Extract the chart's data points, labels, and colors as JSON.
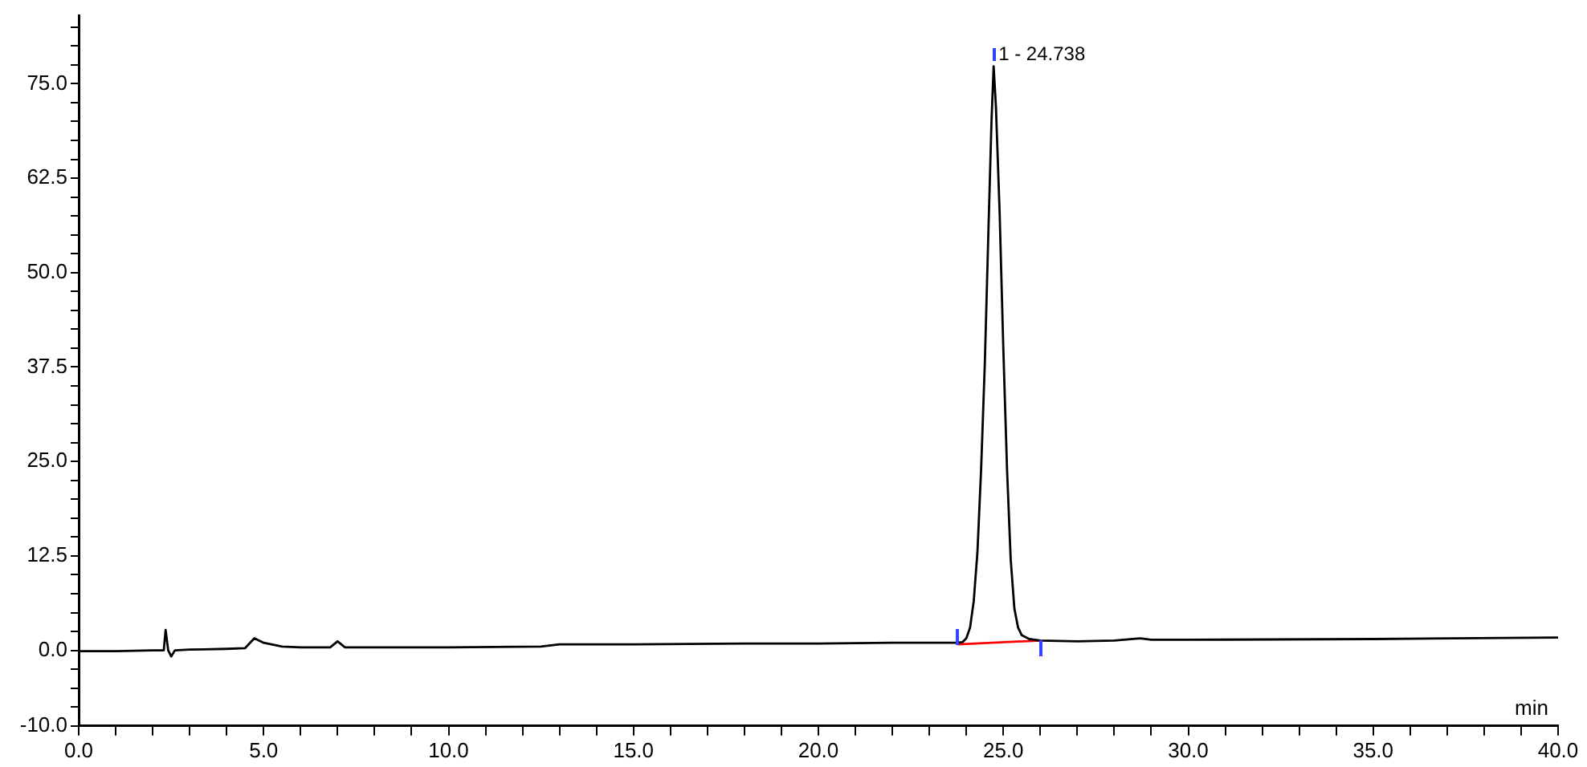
{
  "chart_data": {
    "type": "line",
    "xlabel": "min",
    "x": [
      0,
      1.0,
      2.0,
      2.3,
      2.35,
      2.42,
      2.5,
      2.6,
      3.0,
      4.0,
      4.5,
      4.75,
      5.0,
      5.5,
      6.0,
      6.8,
      7.0,
      7.2,
      8.0,
      10.0,
      12.5,
      13.0,
      15.0,
      18.0,
      20.0,
      22.0,
      23.7,
      23.9,
      24.0,
      24.1,
      24.2,
      24.3,
      24.4,
      24.5,
      24.6,
      24.68,
      24.738,
      24.8,
      24.9,
      25.0,
      25.1,
      25.2,
      25.3,
      25.4,
      25.5,
      25.7,
      26.0,
      27.0,
      28.0,
      28.7,
      29.0,
      30.0,
      35.0,
      40.0
    ],
    "series": [
      {
        "color": "#000000",
        "values": [
          -0.1,
          -0.1,
          0.0,
          0.0,
          2.7,
          0.0,
          -0.8,
          0.0,
          0.1,
          0.2,
          0.3,
          1.6,
          1.0,
          0.5,
          0.4,
          0.4,
          1.2,
          0.4,
          0.4,
          0.4,
          0.5,
          0.8,
          0.8,
          0.9,
          0.9,
          1.0,
          1.0,
          1.1,
          1.6,
          3.0,
          6.5,
          13.0,
          24.0,
          38.0,
          56.0,
          70.0,
          77.3,
          72.0,
          58.0,
          40.0,
          24.0,
          12.0,
          5.5,
          3.0,
          2.0,
          1.5,
          1.3,
          1.2,
          1.3,
          1.6,
          1.4,
          1.4,
          1.5,
          1.7
        ]
      },
      {
        "color": "#ff0000",
        "x": [
          23.77,
          26.0
        ],
        "values": [
          0.8,
          1.3
        ]
      }
    ],
    "annotations": [
      {
        "text": "1 - 24.738",
        "x": 24.738,
        "y": 77.3
      }
    ],
    "xlim": [
      0,
      40
    ],
    "xticks": [
      {
        "value": 0,
        "label": "0.0"
      },
      {
        "value": 1,
        "label": null
      },
      {
        "value": 2,
        "label": null
      },
      {
        "value": 3,
        "label": null
      },
      {
        "value": 4,
        "label": null
      },
      {
        "value": 5,
        "label": "5.0"
      },
      {
        "value": 6,
        "label": null
      },
      {
        "value": 7,
        "label": null
      },
      {
        "value": 8,
        "label": null
      },
      {
        "value": 9,
        "label": null
      },
      {
        "value": 10,
        "label": "10.0"
      },
      {
        "value": 11,
        "label": null
      },
      {
        "value": 12,
        "label": null
      },
      {
        "value": 13,
        "label": null
      },
      {
        "value": 14,
        "label": null
      },
      {
        "value": 15,
        "label": "15.0"
      },
      {
        "value": 16,
        "label": null
      },
      {
        "value": 17,
        "label": null
      },
      {
        "value": 18,
        "label": null
      },
      {
        "value": 19,
        "label": null
      },
      {
        "value": 20,
        "label": "20.0"
      },
      {
        "value": 21,
        "label": null
      },
      {
        "value": 22,
        "label": null
      },
      {
        "value": 23,
        "label": null
      },
      {
        "value": 24,
        "label": null
      },
      {
        "value": 25,
        "label": "25.0"
      },
      {
        "value": 26,
        "label": null
      },
      {
        "value": 27,
        "label": null
      },
      {
        "value": 28,
        "label": null
      },
      {
        "value": 29,
        "label": null
      },
      {
        "value": 30,
        "label": "30.0"
      },
      {
        "value": 31,
        "label": null
      },
      {
        "value": 32,
        "label": null
      },
      {
        "value": 33,
        "label": null
      },
      {
        "value": 34,
        "label": null
      },
      {
        "value": 35,
        "label": "35.0"
      },
      {
        "value": 36,
        "label": null
      },
      {
        "value": 37,
        "label": null
      },
      {
        "value": 38,
        "label": null
      },
      {
        "value": 39,
        "label": null
      },
      {
        "value": 40,
        "label": "40.0"
      }
    ],
    "ylim": [
      -10,
      84
    ],
    "yticks": [
      {
        "value": -10,
        "label": "-10.0"
      },
      {
        "value": -7.5,
        "label": null
      },
      {
        "value": -5,
        "label": null
      },
      {
        "value": -2.5,
        "label": null
      },
      {
        "value": 0,
        "label": "0.0"
      },
      {
        "value": 2.5,
        "label": null
      },
      {
        "value": 5,
        "label": null
      },
      {
        "value": 7.5,
        "label": null
      },
      {
        "value": 10,
        "label": null
      },
      {
        "value": 12.5,
        "label": "12.5"
      },
      {
        "value": 15,
        "label": null
      },
      {
        "value": 17.5,
        "label": null
      },
      {
        "value": 20,
        "label": null
      },
      {
        "value": 22.5,
        "label": null
      },
      {
        "value": 25,
        "label": "25.0"
      },
      {
        "value": 27.5,
        "label": null
      },
      {
        "value": 30,
        "label": null
      },
      {
        "value": 32.5,
        "label": null
      },
      {
        "value": 35,
        "label": null
      },
      {
        "value": 37.5,
        "label": "37.5"
      },
      {
        "value": 40,
        "label": null
      },
      {
        "value": 42.5,
        "label": null
      },
      {
        "value": 45,
        "label": null
      },
      {
        "value": 47.5,
        "label": null
      },
      {
        "value": 50,
        "label": "50.0"
      },
      {
        "value": 52.5,
        "label": null
      },
      {
        "value": 55,
        "label": null
      },
      {
        "value": 57.5,
        "label": null
      },
      {
        "value": 60,
        "label": null
      },
      {
        "value": 62.5,
        "label": "62.5"
      },
      {
        "value": 65,
        "label": null
      },
      {
        "value": 67.5,
        "label": null
      },
      {
        "value": 70,
        "label": null
      },
      {
        "value": 72.5,
        "label": null
      },
      {
        "value": 75,
        "label": "75.0"
      },
      {
        "value": 77.5,
        "label": null
      },
      {
        "value": 80,
        "label": null
      },
      {
        "value": 82.5,
        "label": null
      }
    ],
    "grid": false,
    "legend": false,
    "marker": "none",
    "line_style": "solid"
  }
}
